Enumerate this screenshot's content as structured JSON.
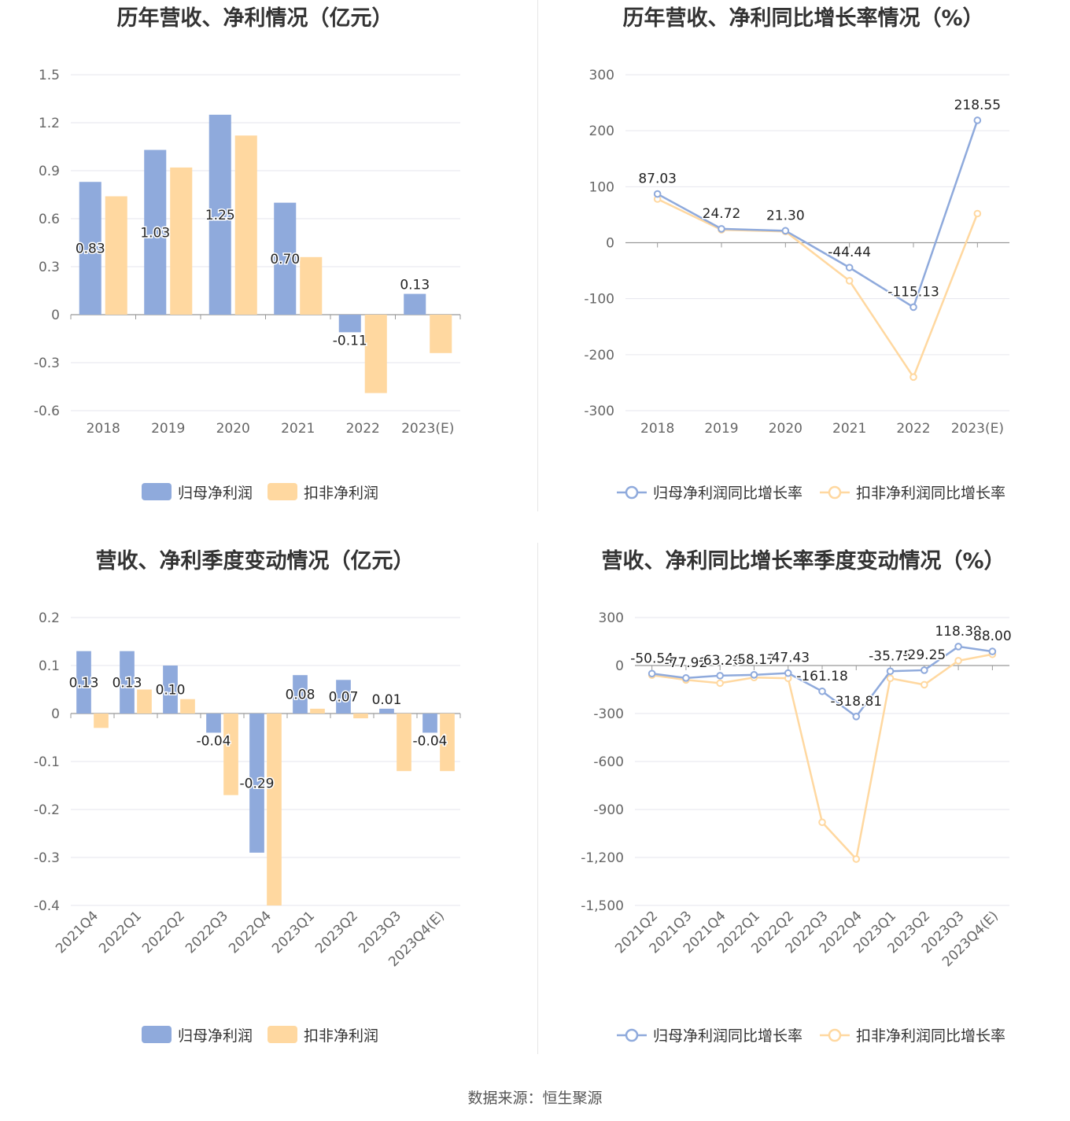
{
  "colors": {
    "blue": "#8faadc",
    "orange": "#ffd8a0",
    "grid": "#e6e6ee",
    "axis": "#999999"
  },
  "legend": {
    "bar": [
      "归母净利润",
      "扣非净利润"
    ],
    "line": [
      "归母净利润同比增长率",
      "扣非净利润同比增长率"
    ]
  },
  "source": "数据来源：恒生聚源",
  "chart_data": [
    {
      "type": "bar",
      "title": "历年营收、净利情况（亿元）",
      "categories": [
        "2018",
        "2019",
        "2020",
        "2021",
        "2022",
        "2023(E)"
      ],
      "ylim": [
        -0.6,
        1.5
      ],
      "yticks": [
        "1.5",
        "1.2",
        "0.9",
        "0.6",
        "0.3",
        "0",
        "-0.3",
        "-0.6"
      ],
      "series": [
        {
          "name": "归母净利润",
          "values": [
            0.83,
            1.03,
            1.25,
            0.7,
            -0.11,
            0.13
          ],
          "labels": [
            "0.83",
            "1.03",
            "1.25",
            "0.70",
            "-0.11",
            "0.13"
          ]
        },
        {
          "name": "扣非净利润",
          "values": [
            0.74,
            0.92,
            1.12,
            0.36,
            -0.49,
            -0.24
          ]
        }
      ]
    },
    {
      "type": "line",
      "title": "历年营收、净利同比增长率情况（%）",
      "categories": [
        "2018",
        "2019",
        "2020",
        "2021",
        "2022",
        "2023(E)"
      ],
      "ylim": [
        -300,
        300
      ],
      "yticks": [
        "300",
        "200",
        "100",
        "0",
        "-100",
        "-200",
        "-300"
      ],
      "series": [
        {
          "name": "归母净利润同比增长率",
          "values": [
            87.03,
            24.72,
            21.3,
            -44.44,
            -115.13,
            218.55
          ],
          "labels": [
            "87.03",
            "24.72",
            "21.30",
            "-44.44",
            "-115.13",
            "218.55"
          ]
        },
        {
          "name": "扣非净利润同比增长率",
          "values": [
            78,
            23,
            20,
            -68,
            -240,
            52
          ]
        }
      ]
    },
    {
      "type": "bar",
      "title": "营收、净利季度变动情况（亿元）",
      "categories": [
        "2021Q4",
        "2022Q1",
        "2022Q2",
        "2022Q3",
        "2022Q4",
        "2023Q1",
        "2023Q2",
        "2023Q3",
        "2023Q4(E)"
      ],
      "ylim": [
        -0.4,
        0.2
      ],
      "yticks": [
        "0.2",
        "0.1",
        "0",
        "-0.1",
        "-0.2",
        "-0.3",
        "-0.4"
      ],
      "series": [
        {
          "name": "归母净利润",
          "values": [
            0.13,
            0.13,
            0.1,
            -0.04,
            -0.29,
            0.08,
            0.07,
            0.01,
            -0.04
          ],
          "labels": [
            "0.13",
            "0.13",
            "0.10",
            "-0.04",
            "-0.29",
            "0.08",
            "0.07",
            "0.01",
            "-0.04"
          ]
        },
        {
          "name": "扣非净利润",
          "values": [
            -0.03,
            0.05,
            0.03,
            -0.17,
            -0.4,
            0.01,
            -0.01,
            -0.12,
            -0.12
          ]
        }
      ]
    },
    {
      "type": "line",
      "title": "营收、净利同比增长率季度变动情况（%）",
      "categories": [
        "2021Q2",
        "2021Q3",
        "2021Q4",
        "2022Q1",
        "2022Q2",
        "2022Q3",
        "2022Q4",
        "2023Q1",
        "2023Q2",
        "2023Q3",
        "2023Q4(E)"
      ],
      "ylim": [
        -1500,
        300
      ],
      "yticks": [
        "300",
        "0",
        "-300",
        "-600",
        "-900",
        "-1,200",
        "-1,500"
      ],
      "series": [
        {
          "name": "归母净利润同比增长率",
          "values": [
            -50.54,
            -77.92,
            -63.26,
            -58.17,
            -47.43,
            -161.18,
            -318.81,
            -35.75,
            -29.25,
            118.39,
            88.0
          ],
          "labels": [
            "-50.54",
            "-77.92",
            "-63.26",
            "-58.17",
            "-47.43",
            "-161.18",
            "-318.81",
            "-35.75",
            "-29.25",
            "118.39",
            "88.00"
          ]
        },
        {
          "name": "扣非净利润同比增长率",
          "values": [
            -60,
            -90,
            -110,
            -75,
            -80,
            -980,
            -1210,
            -80,
            -120,
            30,
            70
          ]
        }
      ]
    }
  ]
}
